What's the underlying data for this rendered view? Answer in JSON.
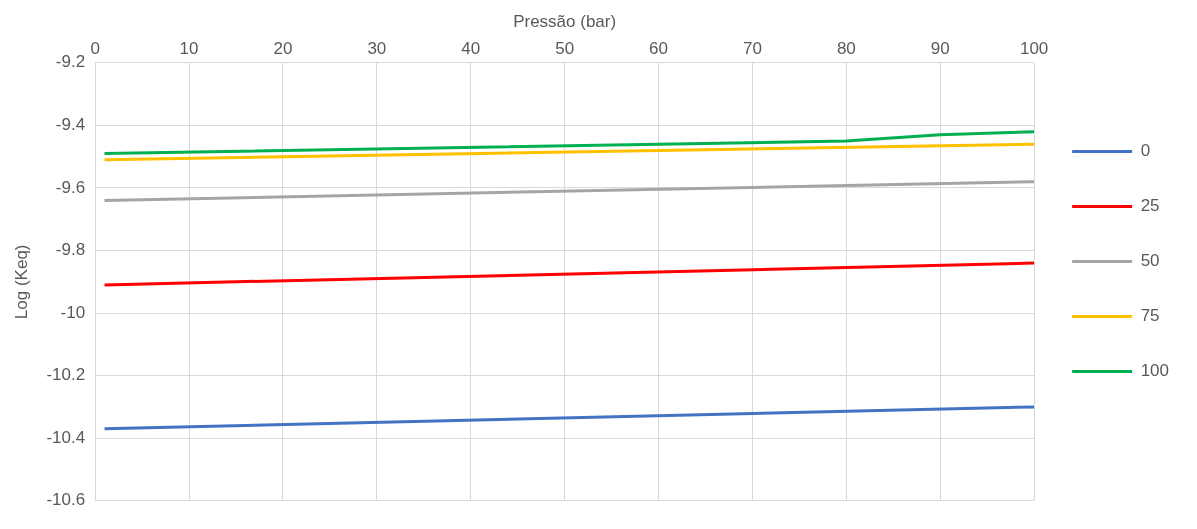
{
  "chart_data": {
    "type": "line",
    "xlabel": "Pressão (bar)",
    "ylabel": "Log (Keq)",
    "xlim": [
      0,
      100
    ],
    "xticks": [
      0,
      10,
      20,
      30,
      40,
      50,
      60,
      70,
      80,
      90,
      100
    ],
    "ylim": [
      -10.6,
      -9.2
    ],
    "yticks": [
      -10.6,
      -10.4,
      -10.2,
      -10,
      -9.8,
      -9.6,
      -9.4,
      -9.2
    ],
    "grid": true,
    "legend": "right",
    "marker": "none",
    "line_style": "solid",
    "series": [
      {
        "name": "0",
        "color": "#4472c4",
        "x": [
          1,
          100
        ],
        "values": [
          -10.37,
          -10.3
        ]
      },
      {
        "name": "25",
        "color": "#ff0000",
        "x": [
          1,
          100
        ],
        "values": [
          -9.91,
          -9.84
        ]
      },
      {
        "name": "50",
        "color": "#a5a5a5",
        "x": [
          1,
          100
        ],
        "values": [
          -9.64,
          -9.58
        ]
      },
      {
        "name": "75",
        "color": "#ffc000",
        "x": [
          1,
          100
        ],
        "values": [
          -9.51,
          -9.46
        ]
      },
      {
        "name": "100",
        "color": "#00b050",
        "x": [
          1,
          80,
          90,
          100
        ],
        "values": [
          -9.49,
          -9.45,
          -9.43,
          -9.42
        ]
      }
    ]
  }
}
